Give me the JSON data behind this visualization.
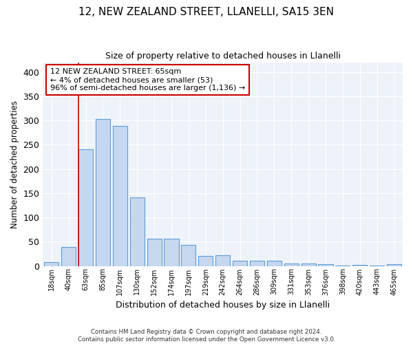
{
  "title": "12, NEW ZEALAND STREET, LLANELLI, SA15 3EN",
  "subtitle": "Size of property relative to detached houses in Llanelli",
  "xlabel": "Distribution of detached houses by size in Llanelli",
  "ylabel": "Number of detached properties",
  "footer_line1": "Contains HM Land Registry data © Crown copyright and database right 2024.",
  "footer_line2": "Contains public sector information licensed under the Open Government Licence v3.0.",
  "bar_labels": [
    "18sqm",
    "40sqm",
    "63sqm",
    "85sqm",
    "107sqm",
    "130sqm",
    "152sqm",
    "174sqm",
    "197sqm",
    "219sqm",
    "242sqm",
    "264sqm",
    "286sqm",
    "309sqm",
    "331sqm",
    "353sqm",
    "376sqm",
    "398sqm",
    "420sqm",
    "443sqm",
    "465sqm"
  ],
  "bar_values": [
    8,
    39,
    241,
    303,
    289,
    141,
    56,
    56,
    44,
    20,
    22,
    10,
    11,
    11,
    5,
    5,
    4,
    1,
    2,
    1,
    4
  ],
  "bar_color": "#c5d8f0",
  "bar_edge_color": "#5b9bd5",
  "annotation_line1": "12 NEW ZEALAND STREET: 65sqm",
  "annotation_line2": "← 4% of detached houses are smaller (53)",
  "annotation_line3": "96% of semi-detached houses are larger (1,136) →",
  "annotation_box_color": "#ffffff",
  "annotation_box_edge": "#cc0000",
  "vline_color": "#cc0000",
  "vline_x_idx": 2,
  "bg_color": "#eef3fa",
  "grid_color": "#ffffff",
  "ylim": [
    0,
    420
  ],
  "yticks": [
    0,
    50,
    100,
    150,
    200,
    250,
    300,
    350,
    400
  ]
}
